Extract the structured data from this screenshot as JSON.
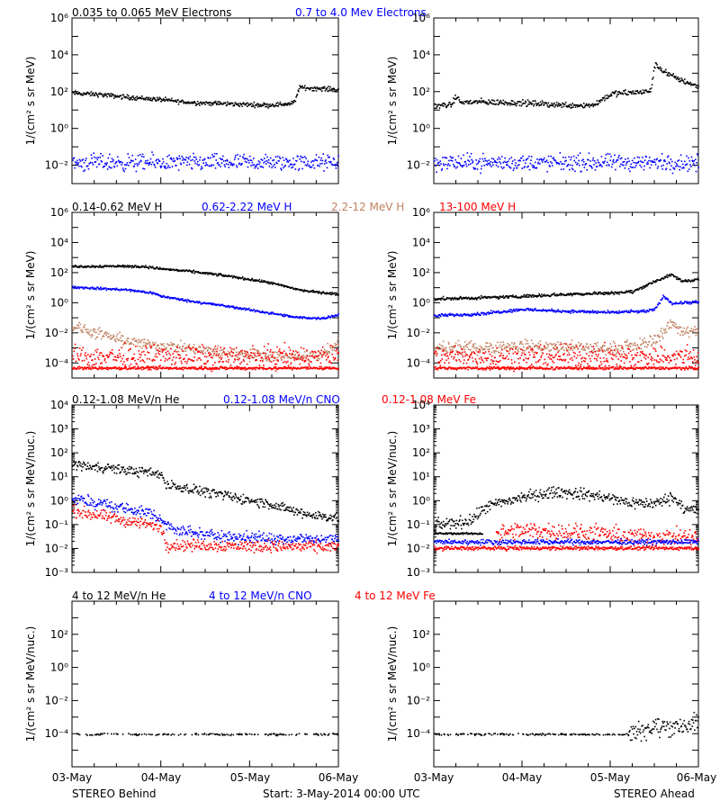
{
  "colors": {
    "black": "#000000",
    "blue": "#0000ff",
    "tan": "#c08060",
    "red": "#ff0000"
  },
  "footer": {
    "left": "STEREO Behind",
    "center": "Start:  3-May-2014 00:00 UTC",
    "right": "STEREO Ahead"
  },
  "x_tick_labels": [
    "03-May",
    "04-May",
    "05-May",
    "06-May"
  ],
  "chart_data": [
    {
      "type": "scatter",
      "row": 1,
      "side": "behind",
      "yscale": "log",
      "ylim": [
        0.001,
        1000000
      ],
      "ylabel": "1/(cm² s sr MeV)",
      "yticks": [
        "10⁻²",
        "10⁰",
        "10²",
        "10⁴",
        "10⁶"
      ],
      "ytick_values": [
        0.01,
        1,
        100,
        10000,
        1000000
      ],
      "x_days": [
        0,
        3
      ],
      "legend": [
        {
          "label": "0.035 to 0.065 MeV Electrons",
          "color": "black"
        },
        {
          "label": "0.7 to 4.0 Mev Electrons",
          "color": "blue"
        }
      ],
      "series": [
        {
          "color": "black",
          "points": [
            [
              0,
              90
            ],
            [
              0.3,
              75
            ],
            [
              0.6,
              55
            ],
            [
              1.0,
              40
            ],
            [
              1.3,
              28
            ],
            [
              1.6,
              25
            ],
            [
              1.9,
              22
            ],
            [
              2.2,
              20
            ],
            [
              2.45,
              24
            ],
            [
              2.5,
              28
            ],
            [
              2.55,
              180
            ],
            [
              3,
              140
            ]
          ],
          "noise": 0.06
        },
        {
          "color": "blue",
          "points": [
            [
              0,
              0.015
            ],
            [
              3,
              0.015
            ]
          ],
          "noise": 0.22
        }
      ]
    },
    {
      "type": "scatter",
      "row": 1,
      "side": "ahead",
      "yscale": "log",
      "ylim": [
        0.001,
        1000000
      ],
      "ylabel": "1/(cm² s sr MeV)",
      "yticks": [
        "10⁻²",
        "10⁰",
        "10²",
        "10⁴",
        "10⁶"
      ],
      "ytick_values": [
        0.01,
        1,
        100,
        10000,
        1000000
      ],
      "x_days": [
        0,
        3
      ],
      "legend": [],
      "series": [
        {
          "color": "black",
          "points": [
            [
              0,
              18
            ],
            [
              0.2,
              22
            ],
            [
              0.25,
              60
            ],
            [
              0.3,
              28
            ],
            [
              0.5,
              30
            ],
            [
              1.0,
              26
            ],
            [
              1.5,
              20
            ],
            [
              1.8,
              20
            ],
            [
              1.85,
              28
            ],
            [
              2.0,
              80
            ],
            [
              2.3,
              100
            ],
            [
              2.45,
              110
            ],
            [
              2.5,
              3000
            ],
            [
              2.7,
              700
            ],
            [
              3,
              200
            ]
          ],
          "noise": 0.08
        },
        {
          "color": "blue",
          "points": [
            [
              0,
              0.015
            ],
            [
              3,
              0.015
            ]
          ],
          "noise": 0.22
        }
      ]
    },
    {
      "type": "scatter",
      "row": 2,
      "side": "behind",
      "yscale": "log",
      "ylim": [
        1e-05,
        1000000
      ],
      "ylabel": "1/(cm² s sr MeV)",
      "yticks": [
        "10⁻⁴",
        "10⁻²",
        "10⁰",
        "10²",
        "10⁴",
        "10⁶"
      ],
      "ytick_values": [
        0.0001,
        0.01,
        1,
        100,
        10000,
        1000000
      ],
      "x_days": [
        0,
        3
      ],
      "legend": [
        {
          "label": "0.14-0.62 MeV H",
          "color": "black"
        },
        {
          "label": "0.62-2.22 MeV H",
          "color": "blue"
        },
        {
          "label": "2.2-12 MeV H",
          "color": "tan"
        },
        {
          "label": "13-100 MeV H",
          "color": "red"
        }
      ],
      "series": [
        {
          "color": "black",
          "points": [
            [
              0,
              280
            ],
            [
              0.5,
              300
            ],
            [
              0.8,
              280
            ],
            [
              1.0,
              200
            ],
            [
              1.4,
              120
            ],
            [
              1.8,
              60
            ],
            [
              2.2,
              25
            ],
            [
              2.6,
              7
            ],
            [
              3,
              4
            ]
          ],
          "noise": 0.04
        },
        {
          "color": "blue",
          "points": [
            [
              0,
              12
            ],
            [
              0.6,
              8
            ],
            [
              0.9,
              5
            ],
            [
              1.0,
              3
            ],
            [
              1.3,
              1.5
            ],
            [
              1.7,
              0.7
            ],
            [
              2.1,
              0.3
            ],
            [
              2.5,
              0.12
            ],
            [
              2.8,
              0.1
            ],
            [
              3,
              0.18
            ]
          ],
          "noise": 0.04
        },
        {
          "color": "tan",
          "points": [
            [
              0,
              0.03
            ],
            [
              0.4,
              0.006
            ],
            [
              0.8,
              0.002
            ],
            [
              1.2,
              0.0012
            ],
            [
              1.6,
              0.0006
            ],
            [
              2.0,
              0.0004
            ],
            [
              2.4,
              0.0003
            ],
            [
              2.75,
              0.0003
            ],
            [
              3,
              0.002
            ]
          ],
          "noise": 0.18
        },
        {
          "color": "red",
          "points": [
            [
              0,
              0.0003
            ],
            [
              3,
              0.0003
            ]
          ],
          "noise": 0.35
        },
        {
          "color": "red",
          "points": [
            [
              0,
              5e-05
            ],
            [
              3,
              5e-05
            ]
          ],
          "noise": 0.05
        }
      ]
    },
    {
      "type": "scatter",
      "row": 2,
      "side": "ahead",
      "yscale": "log",
      "ylim": [
        1e-05,
        1000000
      ],
      "ylabel": "1/(cm² s sr MeV)",
      "yticks": [
        "10⁻⁴",
        "10⁻²",
        "10⁰",
        "10²",
        "10⁴",
        "10⁶"
      ],
      "ytick_values": [
        0.0001,
        0.01,
        1,
        100,
        10000,
        1000000
      ],
      "x_days": [
        0,
        3
      ],
      "legend": [],
      "series": [
        {
          "color": "black",
          "points": [
            [
              0,
              2
            ],
            [
              0.5,
              2.3
            ],
            [
              1.0,
              3
            ],
            [
              1.5,
              4
            ],
            [
              2.0,
              5
            ],
            [
              2.25,
              6
            ],
            [
              2.5,
              30
            ],
            [
              2.7,
              80
            ],
            [
              2.8,
              30
            ],
            [
              3,
              40
            ]
          ],
          "noise": 0.05
        },
        {
          "color": "blue",
          "points": [
            [
              0,
              0.15
            ],
            [
              0.5,
              0.2
            ],
            [
              1.0,
              0.4
            ],
            [
              1.5,
              0.3
            ],
            [
              2.0,
              0.25
            ],
            [
              2.4,
              0.3
            ],
            [
              2.5,
              0.4
            ],
            [
              2.6,
              3
            ],
            [
              2.7,
              1
            ],
            [
              3,
              1.2
            ]
          ],
          "noise": 0.05
        },
        {
          "color": "tan",
          "points": [
            [
              0,
              0.001
            ],
            [
              0.5,
              0.0012
            ],
            [
              1.0,
              0.0015
            ],
            [
              1.5,
              0.0012
            ],
            [
              2.0,
              0.001
            ],
            [
              2.3,
              0.0015
            ],
            [
              2.5,
              0.004
            ],
            [
              2.7,
              0.05
            ],
            [
              2.8,
              0.015
            ],
            [
              3,
              0.012
            ]
          ],
          "noise": 0.2
        },
        {
          "color": "red",
          "points": [
            [
              0,
              0.0003
            ],
            [
              3,
              0.0003
            ]
          ],
          "noise": 0.35
        },
        {
          "color": "red",
          "points": [
            [
              0,
              5e-05
            ],
            [
              3,
              5e-05
            ]
          ],
          "noise": 0.05
        }
      ]
    },
    {
      "type": "scatter",
      "row": 3,
      "side": "behind",
      "yscale": "log",
      "ylim": [
        0.001,
        10000
      ],
      "ylabel": "1/(cm² s sr MeV/nuc.)",
      "yticks": [
        "10⁻³",
        "10⁻²",
        "10⁻¹",
        "10⁰",
        "10¹",
        "10²",
        "10³",
        "10⁴"
      ],
      "ytick_values": [
        0.001,
        0.01,
        0.1,
        1,
        10,
        100,
        1000,
        10000
      ],
      "x_days": [
        0,
        3
      ],
      "legend": [
        {
          "label": "0.12-1.08 MeV/n He",
          "color": "black"
        },
        {
          "label": "0.12-1.08 MeV/n CNO",
          "color": "blue"
        },
        {
          "label": "0.12-1.08 MeV Fe",
          "color": "red"
        }
      ],
      "series": [
        {
          "color": "black",
          "points": [
            [
              0,
              35
            ],
            [
              0.4,
              25
            ],
            [
              0.7,
              18
            ],
            [
              1.0,
              14
            ],
            [
              1.05,
              5
            ],
            [
              1.4,
              3
            ],
            [
              1.8,
              1.5
            ],
            [
              2.2,
              0.8
            ],
            [
              2.6,
              0.3
            ],
            [
              3,
              0.2
            ]
          ],
          "noise": 0.1
        },
        {
          "color": "blue",
          "points": [
            [
              0,
              1.2
            ],
            [
              0.3,
              0.8
            ],
            [
              0.6,
              0.5
            ],
            [
              0.9,
              0.3
            ],
            [
              1.0,
              0.15
            ],
            [
              1.2,
              0.06
            ],
            [
              1.5,
              0.04
            ],
            [
              2.0,
              0.03
            ],
            [
              3,
              0.025
            ]
          ],
          "noise": 0.12
        },
        {
          "color": "red",
          "points": [
            [
              0,
              0.4
            ],
            [
              0.3,
              0.25
            ],
            [
              0.6,
              0.15
            ],
            [
              0.8,
              0.12
            ],
            [
              1.0,
              0.08
            ],
            [
              1.05,
              0.015
            ],
            [
              3,
              0.012
            ]
          ],
          "noise": 0.12
        }
      ]
    },
    {
      "type": "scatter",
      "row": 3,
      "side": "ahead",
      "yscale": "log",
      "ylim": [
        0.001,
        10000
      ],
      "ylabel": "1/(cm² s sr MeV/nuc.)",
      "yticks": [
        "10⁻³",
        "10⁻²",
        "10⁻¹",
        "10⁰",
        "10¹",
        "10²",
        "10³",
        "10⁴"
      ],
      "ytick_values": [
        0.001,
        0.01,
        0.1,
        1,
        10,
        100,
        1000,
        10000
      ],
      "x_days": [
        0,
        3
      ],
      "legend": [],
      "series": [
        {
          "color": "black",
          "points": [
            [
              0,
              0.1
            ],
            [
              0.4,
              0.15
            ],
            [
              0.6,
              0.6
            ],
            [
              1.0,
              1.5
            ],
            [
              1.4,
              2.5
            ],
            [
              1.8,
              1.8
            ],
            [
              2.2,
              0.9
            ],
            [
              2.5,
              0.8
            ],
            [
              2.7,
              1.5
            ],
            [
              2.85,
              0.5
            ],
            [
              3,
              0.4
            ]
          ],
          "noise": 0.12
        },
        {
          "color": "black",
          "points": [
            [
              0,
              0.045
            ],
            [
              0.55,
              0.045
            ]
          ],
          "noise": 0.02
        },
        {
          "color": "red",
          "points": [
            [
              0.7,
              0.045
            ],
            [
              1.1,
              0.06
            ],
            [
              1.6,
              0.05
            ],
            [
              2.2,
              0.035
            ],
            [
              3,
              0.03
            ]
          ],
          "noise": 0.18
        },
        {
          "color": "blue",
          "points": [
            [
              0,
              0.02
            ],
            [
              3,
              0.02
            ]
          ],
          "noise": 0.05
        },
        {
          "color": "red",
          "points": [
            [
              0,
              0.011
            ],
            [
              3,
              0.011
            ]
          ],
          "noise": 0.04
        }
      ]
    },
    {
      "type": "scatter",
      "row": 4,
      "side": "behind",
      "yscale": "log",
      "ylim": [
        1e-06,
        10000
      ],
      "ylabel": "1/(cm² s sr MeV/nuc.)",
      "yticks": [
        "10⁻⁴",
        "10⁻²",
        "10⁰",
        "10²"
      ],
      "ytick_values": [
        0.0001,
        0.01,
        1,
        100
      ],
      "x_days": [
        0,
        3
      ],
      "legend": [
        {
          "label": "4 to 12 MeV/n He",
          "color": "black"
        },
        {
          "label": "4 to 12 MeV/n CNO",
          "color": "blue"
        },
        {
          "label": "4 to 12 MeV Fe",
          "color": "red"
        }
      ],
      "series": [
        {
          "color": "black",
          "points": [
            [
              0,
              0.0001
            ],
            [
              3,
              0.0001
            ]
          ],
          "noise": 0.03,
          "sparse": 0.6
        }
      ]
    },
    {
      "type": "scatter",
      "row": 4,
      "side": "ahead",
      "yscale": "log",
      "ylim": [
        1e-06,
        10000
      ],
      "ylabel": "1/(cm² s sr MeV/nuc.)",
      "yticks": [
        "10⁻⁴",
        "10⁻²",
        "10⁰",
        "10²"
      ],
      "ytick_values": [
        0.0001,
        0.01,
        1,
        100
      ],
      "x_days": [
        0,
        3
      ],
      "legend": [],
      "series": [
        {
          "color": "black",
          "points": [
            [
              0,
              0.0001
            ],
            [
              2.2,
              0.0001
            ]
          ],
          "noise": 0.03,
          "sparse": 0.5
        },
        {
          "color": "black",
          "points": [
            [
              2.2,
              0.00015
            ],
            [
              2.6,
              0.0003
            ],
            [
              3,
              0.0004
            ]
          ],
          "noise": 0.3
        }
      ]
    }
  ]
}
